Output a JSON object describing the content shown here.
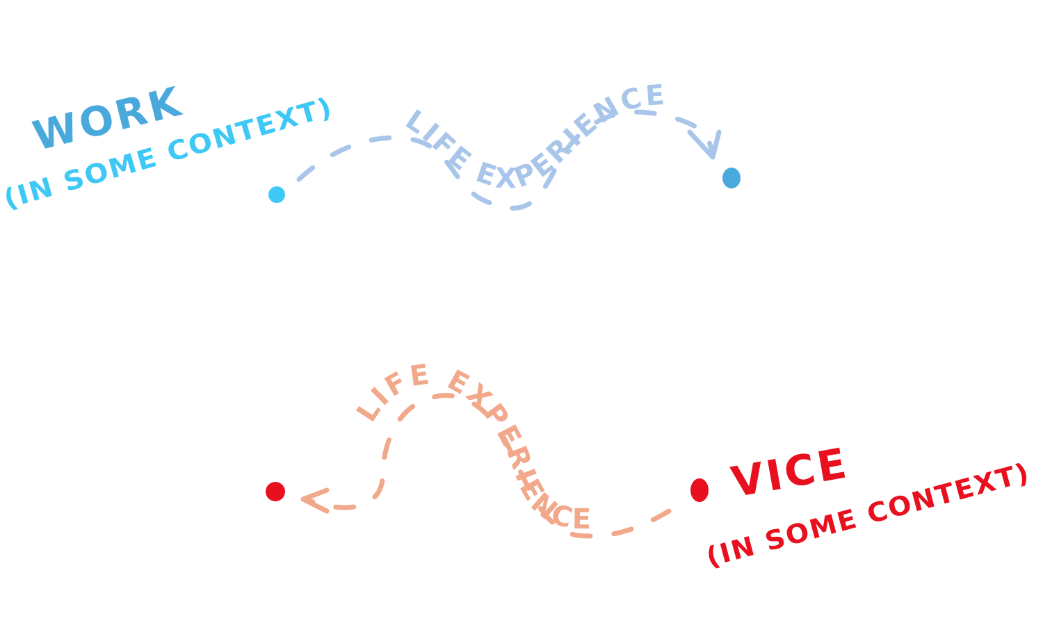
{
  "top": {
    "title": "WORK",
    "subtitle": "(IN SOME CONTEXT)",
    "path_label": "LIFE EXPERIENCE"
  },
  "bottom": {
    "title": "VICE",
    "subtitle": "(IN SOME CONTEXT)",
    "path_label": "LIFE EXPERIENCE"
  }
}
